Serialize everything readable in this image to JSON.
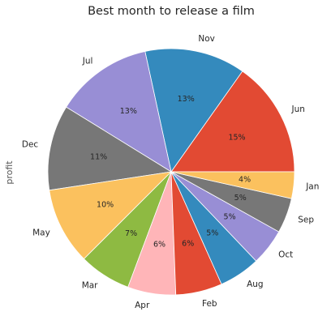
{
  "chart_data": {
    "type": "pie",
    "title": "Best month to release a film",
    "ylabel": "profit",
    "slices": [
      {
        "label": "Jun",
        "pct_label": "15%",
        "value": 15.2,
        "color": "#e24a33"
      },
      {
        "label": "Nov",
        "pct_label": "13%",
        "value": 13.2,
        "color": "#348abd"
      },
      {
        "label": "Jul",
        "pct_label": "13%",
        "value": 12.8,
        "color": "#988ed5"
      },
      {
        "label": "Dec",
        "pct_label": "11%",
        "value": 11.2,
        "color": "#777777"
      },
      {
        "label": "May",
        "pct_label": "10%",
        "value": 10.1,
        "color": "#fbc15e"
      },
      {
        "label": "Mar",
        "pct_label": "7%",
        "value": 6.8,
        "color": "#8eba42"
      },
      {
        "label": "Apr",
        "pct_label": "6%",
        "value": 6.3,
        "color": "#ffb5b8"
      },
      {
        "label": "Feb",
        "pct_label": "6%",
        "value": 6.1,
        "color": "#e24a33"
      },
      {
        "label": "Aug",
        "pct_label": "5%",
        "value": 5.4,
        "color": "#348abd"
      },
      {
        "label": "Oct",
        "pct_label": "5%",
        "value": 4.8,
        "color": "#988ed5"
      },
      {
        "label": "Sep",
        "pct_label": "5%",
        "value": 4.6,
        "color": "#777777"
      },
      {
        "label": "Jan",
        "pct_label": "4%",
        "value": 3.5,
        "color": "#fbc15e"
      }
    ]
  }
}
